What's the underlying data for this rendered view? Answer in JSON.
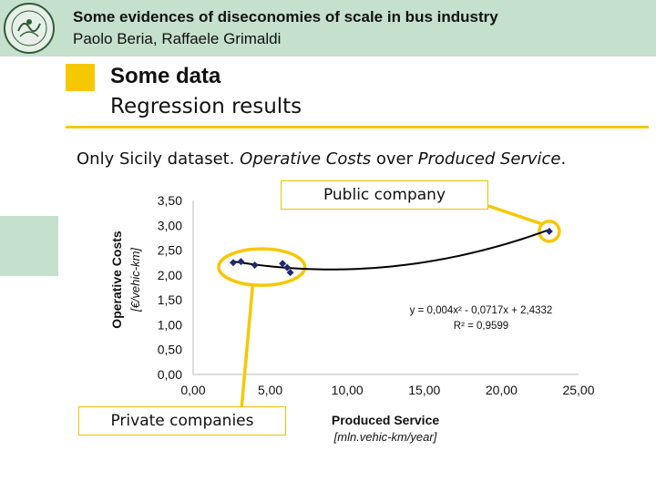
{
  "header": {
    "title": "Some evidences of diseconomies of scale in bus industry",
    "authors": "Paolo Beria, Raffaele Grimaldi",
    "logo_icon": "university-seal-icon"
  },
  "section": {
    "title": "Some data",
    "subtitle": "Regression results"
  },
  "caption": {
    "prefix": "Only Sicily dataset. ",
    "em1": "Operative Costs",
    "middle": " over ",
    "em2": "Produced Service",
    "suffix": "."
  },
  "callouts": {
    "public": "Public company",
    "private": "Private companies"
  },
  "colors": {
    "header_bg": "#c5e0cd",
    "accent_yellow": "#f6c800",
    "point_color": "#1f2a6e",
    "trend_color": "#000000"
  },
  "chart_data": {
    "type": "scatter",
    "xlabel": "Produced Service",
    "xunit": "[mln.vehic-km/year]",
    "ylabel": "Operative Costs",
    "yunit": "[€/vehic-km]",
    "xlim": [
      0,
      25
    ],
    "ylim": [
      0,
      3.5
    ],
    "xticks": [
      "0,00",
      "5,00",
      "10,00",
      "15,00",
      "20,00",
      "25,00"
    ],
    "yticks": [
      "0,00",
      "0,50",
      "1,00",
      "1,50",
      "2,00",
      "2,50",
      "3,00",
      "3,50"
    ],
    "grid": false,
    "points": [
      {
        "x": 2.6,
        "y": 2.25
      },
      {
        "x": 3.1,
        "y": 2.27
      },
      {
        "x": 4.0,
        "y": 2.2
      },
      {
        "x": 5.8,
        "y": 2.23
      },
      {
        "x": 6.1,
        "y": 2.15
      },
      {
        "x": 6.3,
        "y": 2.05
      },
      {
        "x": 23.1,
        "y": 2.88
      }
    ],
    "trendline": {
      "a": 0.004,
      "b": -0.0717,
      "c": 2.4332,
      "x_from": 2.6,
      "x_to": 23.1
    },
    "annotation_equation": "y = 0,004x² - 0,0717x + 2,4332",
    "annotation_r2": "R² = 0,9599"
  }
}
